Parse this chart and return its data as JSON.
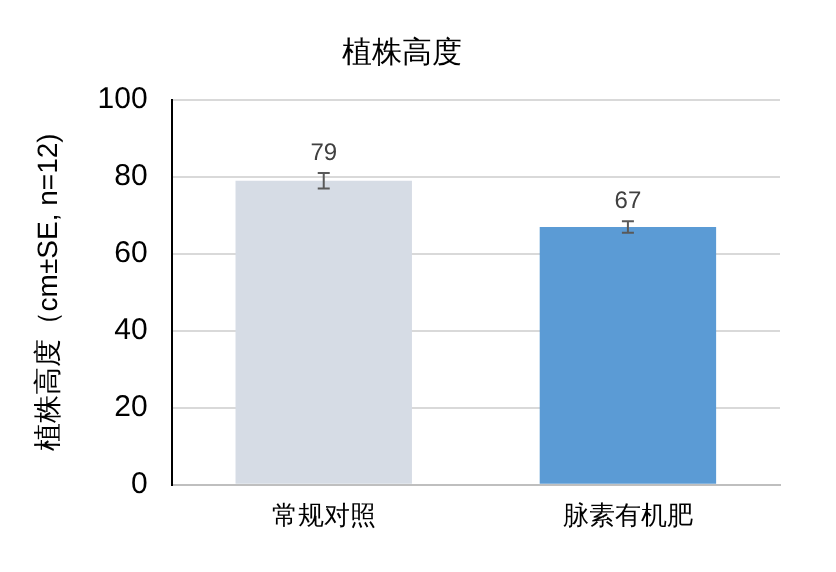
{
  "chart_data": {
    "type": "bar",
    "title": "植株高度",
    "ylabel": "植株高度（cm±SE, n=12)",
    "categories": [
      "常规对照",
      "脉素有机肥"
    ],
    "values": [
      79,
      67
    ],
    "colors": [
      "#d6dce5",
      "#5b9bd5"
    ],
    "errors": [
      2,
      1.5
    ],
    "data_labels": true,
    "ylim": [
      0,
      100
    ],
    "yticks": [
      0,
      20,
      40,
      60,
      80,
      100
    ],
    "grid": "y",
    "legend": false
  }
}
